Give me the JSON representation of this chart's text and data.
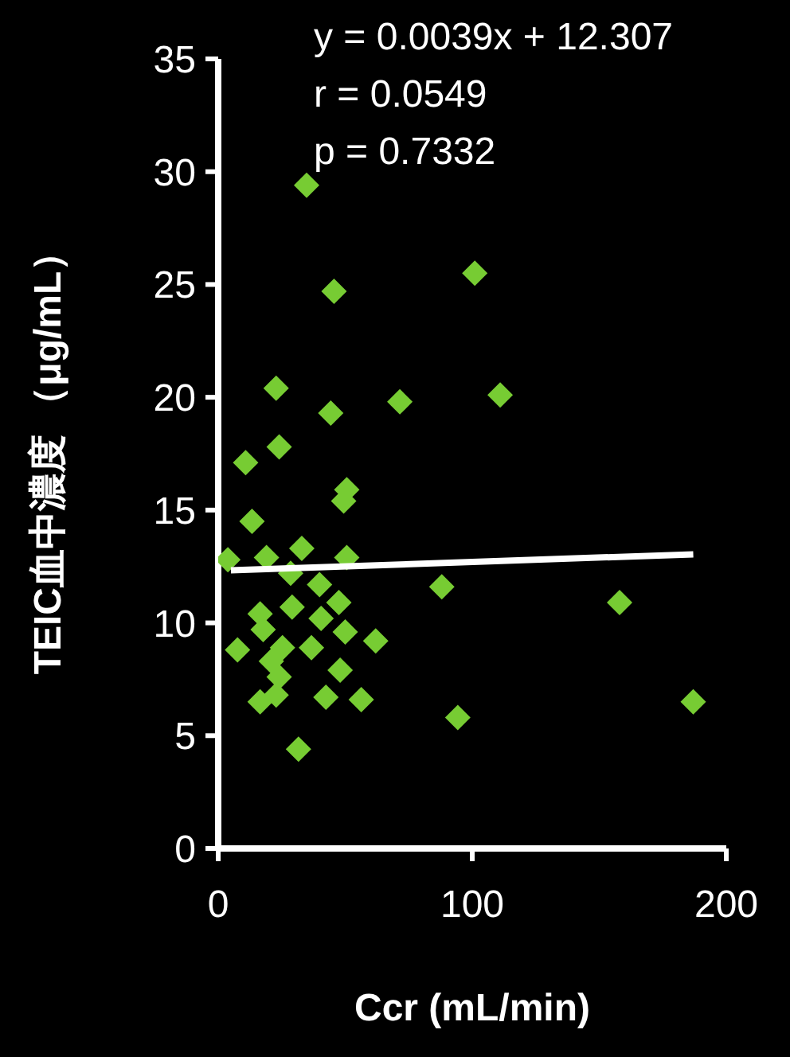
{
  "chart_data": {
    "type": "scatter",
    "xlabel": "Ccr (mL/min)",
    "ylabel": "TEIC血中濃度 （μg/mL）",
    "xlim": [
      0,
      200
    ],
    "xticks": [
      0,
      100,
      200
    ],
    "ylim": [
      0,
      35
    ],
    "yticks": [
      0,
      5,
      10,
      15,
      20,
      25,
      30,
      35
    ],
    "marker": "diamond",
    "annotations": [
      "y = 0.0039x + 12.307",
      "r = 0.0549",
      "p = 0.7332"
    ],
    "series": [
      {
        "color": "#77cc33",
        "x": [
          34.8,
          101,
          45.6,
          22.8,
          111,
          71.5,
          44.3,
          24,
          10.8,
          50.6,
          49.4,
          13.3,
          3.8,
          19,
          32.9,
          50.6,
          28.5,
          39.9,
          88,
          16.5,
          29.1,
          47.5,
          40.5,
          50,
          62,
          7.6,
          25.3,
          36.7,
          20.9,
          24,
          48,
          16.5,
          22.8,
          42.4,
          56.3,
          94.3,
          31.6,
          158,
          187,
          17.7
        ],
        "values": [
          29.4,
          25.5,
          24.7,
          20.4,
          20.1,
          19.8,
          19.3,
          17.8,
          17.1,
          15.9,
          15.4,
          14.5,
          12.8,
          12.9,
          13.3,
          12.9,
          12.2,
          11.7,
          11.6,
          10.4,
          10.7,
          10.9,
          10.2,
          9.6,
          9.2,
          8.8,
          8.9,
          8.9,
          8.3,
          7.6,
          7.9,
          6.5,
          6.8,
          6.7,
          6.6,
          5.8,
          4.4,
          10.9,
          6.5,
          9.7
        ]
      },
      {
        "type": "line",
        "color": "#ffffff",
        "marker": "none",
        "x": [
          5,
          187
        ],
        "values": [
          12.33,
          13.04
        ]
      }
    ]
  }
}
